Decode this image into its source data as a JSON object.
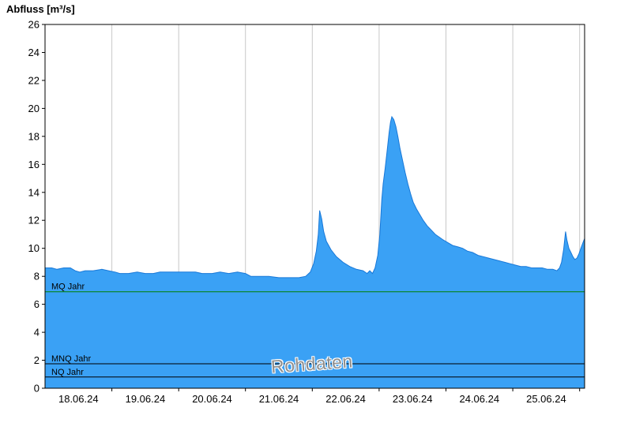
{
  "title": "Abfluss [m³/s]",
  "watermark": "Rohdaten",
  "colors": {
    "area_fill": "#3aa1f5",
    "area_stroke": "#1878d8",
    "grid": "#c8c8c8",
    "axis": "#000000",
    "tick_label": "#000000",
    "watermark": "#8e8e8e"
  },
  "chart_data": {
    "type": "area",
    "title": "Abfluss [m³/s]",
    "xlabel": "",
    "ylabel": "Abfluss [m³/s]",
    "ylim": [
      0,
      26
    ],
    "ytick_step": 2,
    "xlim": [
      0,
      8.075
    ],
    "x_unit": "days since 18.06.24 00:00",
    "x_labels": [
      "18.06.24",
      "19.06.24",
      "20.06.24",
      "21.06.24",
      "22.06.24",
      "23.06.24",
      "24.06.24",
      "25.06.24"
    ],
    "grid": "vertical-only",
    "legend": "none",
    "reference_lines": [
      {
        "label": "MQ Jahr",
        "value": 6.9,
        "color": "#008000"
      },
      {
        "label": "MNQ Jahr",
        "value": 1.75,
        "color": "#000000"
      },
      {
        "label": "NQ Jahr",
        "value": 0.8,
        "color": "#000000"
      }
    ],
    "series": [
      {
        "name": "Rohdaten",
        "points": [
          [
            0.0,
            8.6
          ],
          [
            0.1,
            8.6
          ],
          [
            0.18,
            8.5
          ],
          [
            0.28,
            8.6
          ],
          [
            0.38,
            8.6
          ],
          [
            0.45,
            8.4
          ],
          [
            0.52,
            8.3
          ],
          [
            0.6,
            8.4
          ],
          [
            0.72,
            8.4
          ],
          [
            0.85,
            8.5
          ],
          [
            0.95,
            8.4
          ],
          [
            1.05,
            8.3
          ],
          [
            1.12,
            8.2
          ],
          [
            1.25,
            8.2
          ],
          [
            1.38,
            8.3
          ],
          [
            1.5,
            8.2
          ],
          [
            1.62,
            8.2
          ],
          [
            1.72,
            8.3
          ],
          [
            1.85,
            8.3
          ],
          [
            2.0,
            8.3
          ],
          [
            2.12,
            8.3
          ],
          [
            2.25,
            8.3
          ],
          [
            2.35,
            8.2
          ],
          [
            2.5,
            8.2
          ],
          [
            2.62,
            8.3
          ],
          [
            2.75,
            8.2
          ],
          [
            2.88,
            8.3
          ],
          [
            3.0,
            8.2
          ],
          [
            3.08,
            8.0
          ],
          [
            3.2,
            8.0
          ],
          [
            3.35,
            8.0
          ],
          [
            3.5,
            7.9
          ],
          [
            3.65,
            7.9
          ],
          [
            3.8,
            7.9
          ],
          [
            3.9,
            8.0
          ],
          [
            3.97,
            8.3
          ],
          [
            4.02,
            8.9
          ],
          [
            4.06,
            9.8
          ],
          [
            4.09,
            11.0
          ],
          [
            4.11,
            12.7
          ],
          [
            4.14,
            12.1
          ],
          [
            4.17,
            11.2
          ],
          [
            4.21,
            10.5
          ],
          [
            4.28,
            9.9
          ],
          [
            4.36,
            9.4
          ],
          [
            4.46,
            9.0
          ],
          [
            4.56,
            8.7
          ],
          [
            4.66,
            8.5
          ],
          [
            4.76,
            8.4
          ],
          [
            4.82,
            8.2
          ],
          [
            4.86,
            8.4
          ],
          [
            4.9,
            8.2
          ],
          [
            4.94,
            8.6
          ],
          [
            4.98,
            9.5
          ],
          [
            5.01,
            11.0
          ],
          [
            5.04,
            13.5
          ],
          [
            5.06,
            14.6
          ],
          [
            5.09,
            15.7
          ],
          [
            5.12,
            17.0
          ],
          [
            5.15,
            18.3
          ],
          [
            5.17,
            19.0
          ],
          [
            5.19,
            19.4
          ],
          [
            5.22,
            19.2
          ],
          [
            5.25,
            18.7
          ],
          [
            5.28,
            18.0
          ],
          [
            5.31,
            17.2
          ],
          [
            5.35,
            16.3
          ],
          [
            5.39,
            15.4
          ],
          [
            5.43,
            14.6
          ],
          [
            5.47,
            13.9
          ],
          [
            5.51,
            13.3
          ],
          [
            5.56,
            12.8
          ],
          [
            5.61,
            12.4
          ],
          [
            5.66,
            12.0
          ],
          [
            5.72,
            11.6
          ],
          [
            5.78,
            11.3
          ],
          [
            5.84,
            11.0
          ],
          [
            5.9,
            10.8
          ],
          [
            5.96,
            10.6
          ],
          [
            6.03,
            10.4
          ],
          [
            6.1,
            10.2
          ],
          [
            6.18,
            10.1
          ],
          [
            6.25,
            10.0
          ],
          [
            6.32,
            9.8
          ],
          [
            6.4,
            9.7
          ],
          [
            6.48,
            9.5
          ],
          [
            6.56,
            9.4
          ],
          [
            6.64,
            9.3
          ],
          [
            6.72,
            9.2
          ],
          [
            6.8,
            9.1
          ],
          [
            6.88,
            9.0
          ],
          [
            6.96,
            8.9
          ],
          [
            7.04,
            8.8
          ],
          [
            7.12,
            8.7
          ],
          [
            7.2,
            8.7
          ],
          [
            7.28,
            8.6
          ],
          [
            7.36,
            8.6
          ],
          [
            7.44,
            8.6
          ],
          [
            7.52,
            8.5
          ],
          [
            7.6,
            8.5
          ],
          [
            7.66,
            8.4
          ],
          [
            7.7,
            8.6
          ],
          [
            7.73,
            9.0
          ],
          [
            7.76,
            9.9
          ],
          [
            7.79,
            11.2
          ],
          [
            7.81,
            10.6
          ],
          [
            7.84,
            10.0
          ],
          [
            7.87,
            9.7
          ],
          [
            7.9,
            9.4
          ],
          [
            7.93,
            9.2
          ],
          [
            7.96,
            9.3
          ],
          [
            7.99,
            9.6
          ],
          [
            8.02,
            10.0
          ],
          [
            8.05,
            10.4
          ],
          [
            8.075,
            10.7
          ]
        ]
      }
    ]
  }
}
